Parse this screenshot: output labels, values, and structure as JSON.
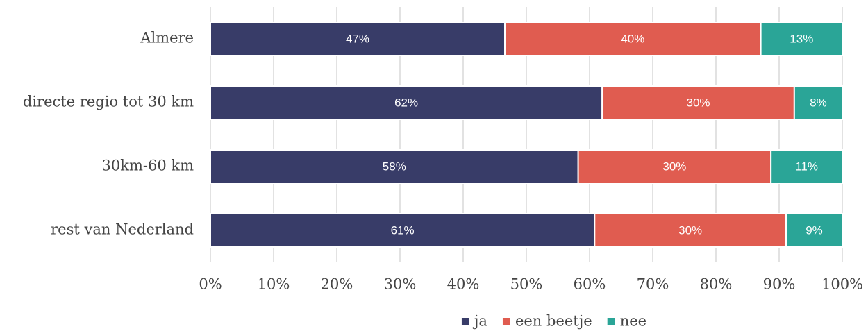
{
  "chart_data": {
    "type": "stacked_barh",
    "categories": [
      "Almere",
      "directe regio tot 30 km",
      "30km-60 km",
      "rest van Nederland"
    ],
    "series": [
      {
        "name": "ja",
        "color": "#383c68",
        "values": [
          46.6,
          62.0,
          58.2,
          60.8
        ],
        "value_labels": [
          "47%",
          "62%",
          "58%",
          "61%"
        ]
      },
      {
        "name": "een beetje",
        "color": "#e05c50",
        "values": [
          40.5,
          30.4,
          30.5,
          30.3
        ],
        "value_labels": [
          "40%",
          "30%",
          "30%",
          "30%"
        ]
      },
      {
        "name": "nee",
        "color": "#2aa597",
        "values": [
          12.9,
          7.6,
          11.3,
          8.9
        ],
        "value_labels": [
          "13%",
          "8%",
          "11%",
          "9%"
        ]
      }
    ],
    "xlim": [
      0,
      100
    ],
    "xticks": [
      {
        "value": 0,
        "label": "0%"
      },
      {
        "value": 10,
        "label": "10%"
      },
      {
        "value": 20,
        "label": "20%"
      },
      {
        "value": 30,
        "label": "30%"
      },
      {
        "value": 40,
        "label": "40%"
      },
      {
        "value": 50,
        "label": "50%"
      },
      {
        "value": 60,
        "label": "60%"
      },
      {
        "value": 70,
        "label": "70%"
      },
      {
        "value": 80,
        "label": "80%"
      },
      {
        "value": 90,
        "label": "90%"
      },
      {
        "value": 100,
        "label": "100%"
      }
    ],
    "grid": true,
    "legend": "bottom"
  }
}
